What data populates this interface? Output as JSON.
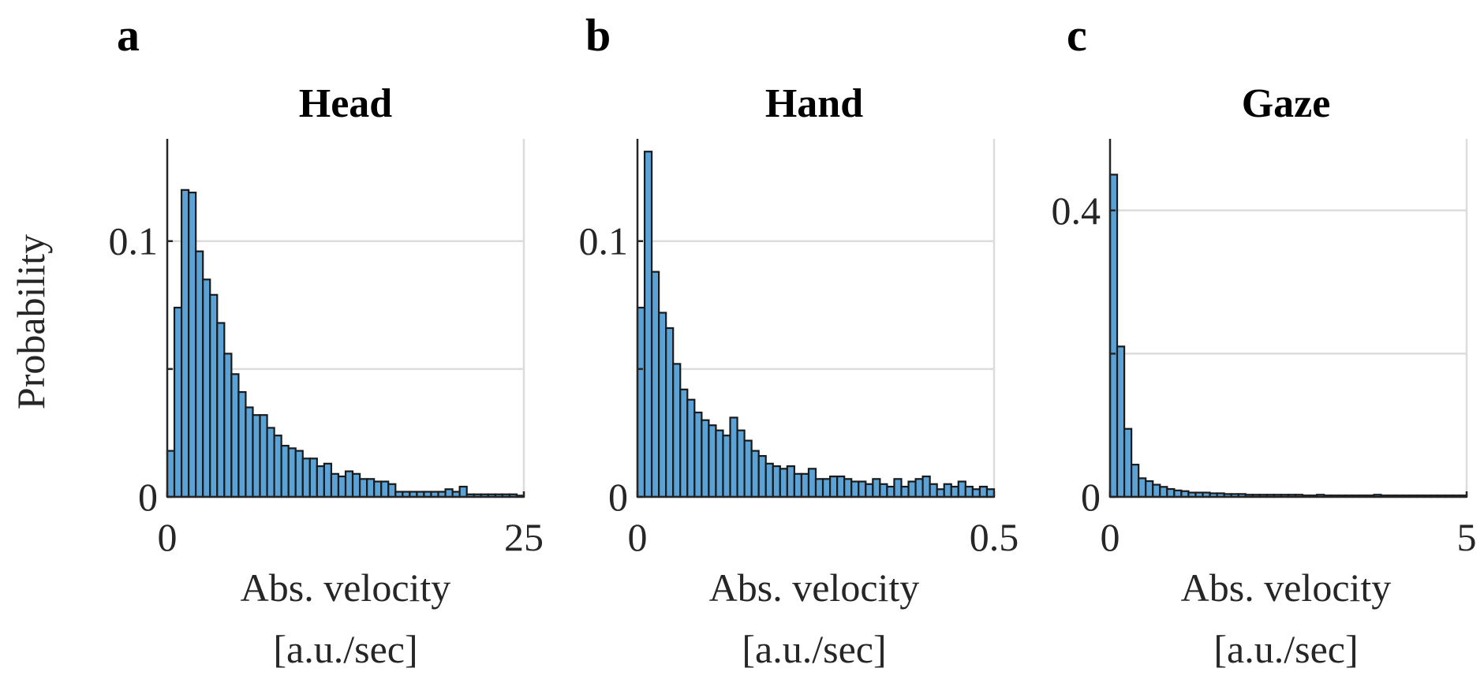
{
  "colors": {
    "bar": "#5ba3d6",
    "axis": "#262626",
    "grid": "#dcdcdc"
  },
  "chart_data": [
    {
      "type": "bar",
      "panel": "a",
      "title": "Head",
      "xlabel": [
        "Abs. velocity",
        "[a.u./sec]"
      ],
      "ylabel": "Probability",
      "xlim": [
        0,
        25
      ],
      "ylim": [
        0,
        0.14
      ],
      "xticks": [
        0,
        25
      ],
      "xtick_labels": [
        "0",
        "25"
      ],
      "yticks": [
        0,
        0.1
      ],
      "ytick_labels": [
        "0",
        "0.1"
      ],
      "ygrid": [
        0.05,
        0.1
      ],
      "bin_width": 0.5,
      "values": [
        0.018,
        0.074,
        0.12,
        0.119,
        0.096,
        0.085,
        0.079,
        0.068,
        0.056,
        0.048,
        0.041,
        0.035,
        0.032,
        0.032,
        0.027,
        0.024,
        0.02,
        0.019,
        0.018,
        0.015,
        0.015,
        0.012,
        0.013,
        0.009,
        0.008,
        0.01,
        0.009,
        0.007,
        0.007,
        0.006,
        0.006,
        0.005,
        0.002,
        0.002,
        0.002,
        0.002,
        0.002,
        0.002,
        0.002,
        0.003,
        0.002,
        0.004,
        0.001,
        0.001,
        0.001,
        0.001,
        0.001,
        0.001,
        0.001,
        0.0005
      ]
    },
    {
      "type": "bar",
      "panel": "b",
      "title": "Hand",
      "xlabel": [
        "Abs. velocity",
        "[a.u./sec]"
      ],
      "ylabel": "",
      "xlim": [
        0,
        0.5
      ],
      "ylim": [
        0,
        0.14
      ],
      "xticks": [
        0,
        0.5
      ],
      "xtick_labels": [
        "0",
        "0.5"
      ],
      "yticks": [
        0,
        0.1
      ],
      "ytick_labels": [
        "0",
        "0.1"
      ],
      "ygrid": [
        0.05,
        0.1
      ],
      "bin_width": 0.01,
      "values": [
        0.074,
        0.135,
        0.088,
        0.072,
        0.066,
        0.052,
        0.042,
        0.038,
        0.033,
        0.03,
        0.028,
        0.026,
        0.024,
        0.031,
        0.026,
        0.022,
        0.018,
        0.016,
        0.013,
        0.012,
        0.011,
        0.012,
        0.009,
        0.009,
        0.011,
        0.007,
        0.007,
        0.008,
        0.008,
        0.007,
        0.006,
        0.006,
        0.005,
        0.007,
        0.005,
        0.004,
        0.007,
        0.004,
        0.006,
        0.007,
        0.008,
        0.005,
        0.003,
        0.005,
        0.004,
        0.006,
        0.004,
        0.003,
        0.004,
        0.003
      ]
    },
    {
      "type": "bar",
      "panel": "c",
      "title": "Gaze",
      "xlabel": [
        "Abs. velocity",
        "[a.u./sec]"
      ],
      "ylabel": "",
      "xlim": [
        0,
        5
      ],
      "ylim": [
        0,
        0.5
      ],
      "xticks": [
        0,
        5
      ],
      "xtick_labels": [
        "0",
        "5"
      ],
      "yticks": [
        0,
        0.4
      ],
      "ytick_labels": [
        "0",
        "0.4"
      ],
      "ygrid": [
        0.2,
        0.4
      ],
      "bin_width": 0.1,
      "values": [
        0.45,
        0.21,
        0.095,
        0.045,
        0.026,
        0.022,
        0.017,
        0.014,
        0.011,
        0.009,
        0.008,
        0.006,
        0.006,
        0.006,
        0.005,
        0.005,
        0.004,
        0.004,
        0.004,
        0.003,
        0.003,
        0.003,
        0.003,
        0.003,
        0.003,
        0.003,
        0.003,
        0.002,
        0.002,
        0.003,
        0.002,
        0.002,
        0.002,
        0.002,
        0.002,
        0.002,
        0.002,
        0.003,
        0.002,
        0.002,
        0.002,
        0.002,
        0.002,
        0.002,
        0.002,
        0.002,
        0.002,
        0.002,
        0.002,
        0.002
      ]
    }
  ]
}
